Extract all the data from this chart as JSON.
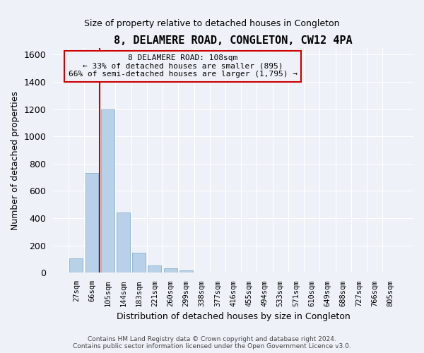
{
  "title": "8, DELAMERE ROAD, CONGLETON, CW12 4PA",
  "subtitle": "Size of property relative to detached houses in Congleton",
  "xlabel": "Distribution of detached houses by size in Congleton",
  "ylabel": "Number of detached properties",
  "bar_labels": [
    "27sqm",
    "66sqm",
    "105sqm",
    "144sqm",
    "183sqm",
    "221sqm",
    "260sqm",
    "299sqm",
    "338sqm",
    "377sqm",
    "416sqm",
    "455sqm",
    "494sqm",
    "533sqm",
    "571sqm",
    "610sqm",
    "649sqm",
    "688sqm",
    "727sqm",
    "766sqm",
    "805sqm"
  ],
  "bar_heights": [
    105,
    730,
    1200,
    440,
    145,
    55,
    33,
    18,
    0,
    0,
    0,
    0,
    0,
    0,
    0,
    0,
    0,
    0,
    0,
    0,
    0
  ],
  "bar_color": "#b8d0e8",
  "bar_edgecolor": "#8ab0d0",
  "vline_x": 1.5,
  "vline_color": "#cc0000",
  "ylim": [
    0,
    1650
  ],
  "yticks": [
    0,
    200,
    400,
    600,
    800,
    1000,
    1200,
    1400,
    1600
  ],
  "annotation_title": "8 DELAMERE ROAD: 108sqm",
  "annotation_line2": "← 33% of detached houses are smaller (895)",
  "annotation_line3": "66% of semi-detached houses are larger (1,795) →",
  "annotation_box_color": "#cc0000",
  "background_color": "#eef2f8",
  "grid_color": "#d8dde8",
  "title_fontsize": 11,
  "subtitle_fontsize": 9,
  "footer1": "Contains HM Land Registry data © Crown copyright and database right 2024.",
  "footer2": "Contains public sector information licensed under the Open Government Licence v3.0."
}
